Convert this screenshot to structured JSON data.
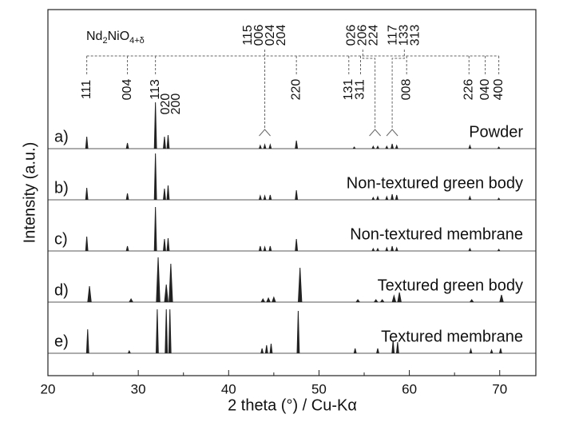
{
  "chart_data": {
    "type": "stacked-pattern",
    "xlabel": "2 theta (°) / Cu-Kα",
    "ylabel": "Intensity (a.u.)",
    "xlim": [
      20,
      74
    ],
    "xticks": [
      20,
      30,
      40,
      50,
      60,
      70
    ],
    "reference_phase": [
      "Nd",
      "2",
      "NiO",
      "4+δ"
    ],
    "reflections": [
      {
        "label": "111",
        "x": 24.3
      },
      {
        "label": "004",
        "x": 28.8
      },
      {
        "label": "113",
        "x": 31.9
      },
      {
        "label": "020",
        "x": 32.9
      },
      {
        "label": "200",
        "x": 33.3
      },
      {
        "label": "220",
        "x": 47.5
      },
      {
        "label": "131",
        "x": 53.3
      },
      {
        "label": "311",
        "x": 54.6
      },
      {
        "label": "008",
        "x": 59.7
      },
      {
        "label": "226",
        "x": 66.6
      },
      {
        "label": "040",
        "x": 68.4
      },
      {
        "label": "400",
        "x": 69.9
      }
    ],
    "reflection_groups": [
      {
        "labels": [
          "115",
          "006",
          "024",
          "204"
        ],
        "x": 44.0
      },
      {
        "labels": [
          "026",
          "206",
          "224"
        ],
        "x": 56.2
      },
      {
        "labels": [
          "117",
          "133",
          "313"
        ],
        "x": 58.1
      }
    ],
    "series": [
      {
        "label": "a)",
        "name": "Powder",
        "color": "#222",
        "x": [
          24.3,
          28.8,
          31.9,
          32.9,
          33.3,
          43.5,
          44.0,
          44.6,
          47.5,
          53.9,
          56.0,
          56.5,
          57.5,
          58.1,
          58.6,
          66.7,
          69.9
        ],
        "values": [
          15,
          7,
          58,
          15,
          17,
          4,
          5,
          5,
          10,
          2,
          3,
          3,
          3,
          6,
          4,
          4,
          2
        ]
      },
      {
        "label": "b)",
        "name": "Non-textured green body",
        "color": "#222",
        "x": [
          24.3,
          28.8,
          31.9,
          32.9,
          33.3,
          43.5,
          44.0,
          44.6,
          47.5,
          56.0,
          56.5,
          57.5,
          58.1,
          58.6,
          66.7,
          69.9
        ],
        "values": [
          15,
          8,
          58,
          14,
          18,
          5,
          5,
          6,
          12,
          3,
          4,
          4,
          7,
          6,
          4,
          2
        ]
      },
      {
        "label": "c)",
        "name": "Non-textured membrane",
        "color": "#222",
        "x": [
          24.3,
          28.8,
          31.9,
          32.9,
          33.3,
          43.5,
          44.0,
          44.6,
          47.5,
          56.0,
          56.5,
          57.5,
          58.1,
          58.6,
          66.7,
          69.9
        ],
        "values": [
          18,
          6,
          55,
          15,
          16,
          6,
          5,
          6,
          15,
          3,
          3,
          4,
          6,
          4,
          3,
          2
        ]
      },
      {
        "label": "d)",
        "name": "Textured green body",
        "color": "#222",
        "x": [
          24.6,
          29.2,
          32.2,
          33.1,
          33.6,
          43.8,
          44.4,
          45.0,
          47.9,
          54.3,
          56.3,
          57.0,
          58.3,
          58.9,
          66.9,
          70.2
        ],
        "values": [
          20,
          4,
          56,
          22,
          48,
          4,
          5,
          6,
          43,
          3,
          3,
          3,
          8,
          12,
          3,
          9
        ]
      },
      {
        "label": "e)",
        "name": "Textured membrane",
        "color": "#222",
        "x": [
          24.4,
          29.0,
          32.1,
          33.1,
          33.5,
          43.7,
          44.2,
          44.7,
          47.7,
          54.0,
          56.5,
          58.2,
          58.7,
          66.8,
          69.1,
          70.1
        ],
        "values": [
          30,
          3,
          55,
          55,
          55,
          6,
          10,
          12,
          53,
          6,
          6,
          16,
          14,
          5,
          4,
          6
        ]
      }
    ]
  }
}
